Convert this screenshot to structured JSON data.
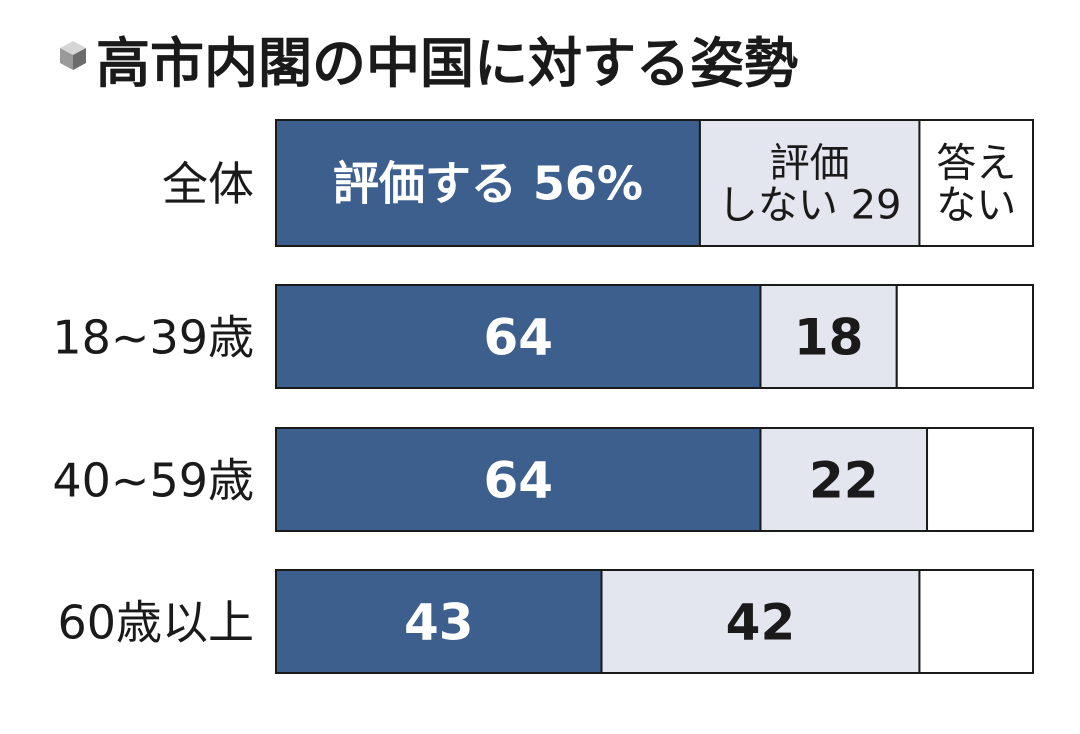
{
  "chart_data": {
    "type": "bar",
    "orientation": "horizontal",
    "stacked": true,
    "title": "高市内閣の中国に対する姿勢",
    "categories": [
      "全体",
      "18~39歳",
      "40~59歳",
      "60歳以上"
    ],
    "series": [
      {
        "name": "評価する",
        "values": [
          56,
          64,
          64,
          43
        ],
        "color": "#3d5f8e"
      },
      {
        "name": "評価しない",
        "values": [
          29,
          18,
          22,
          42
        ],
        "color": "#e4e6ef"
      },
      {
        "name": "答えない",
        "values": [
          15,
          18,
          14,
          15
        ],
        "color": "#ffffff"
      }
    ],
    "data_labels": [
      [
        "評価する 56%",
        "評価\nしない 29",
        "答え\nない"
      ],
      [
        "64",
        "18",
        ""
      ],
      [
        "64",
        "22",
        ""
      ],
      [
        "43",
        "42",
        ""
      ]
    ],
    "xlim": [
      0,
      100
    ],
    "grid": false,
    "legend": "none"
  },
  "colors": {
    "border": "#1a1a1a",
    "icon": "#8a8a8a"
  },
  "title_icon": "cube-icon"
}
